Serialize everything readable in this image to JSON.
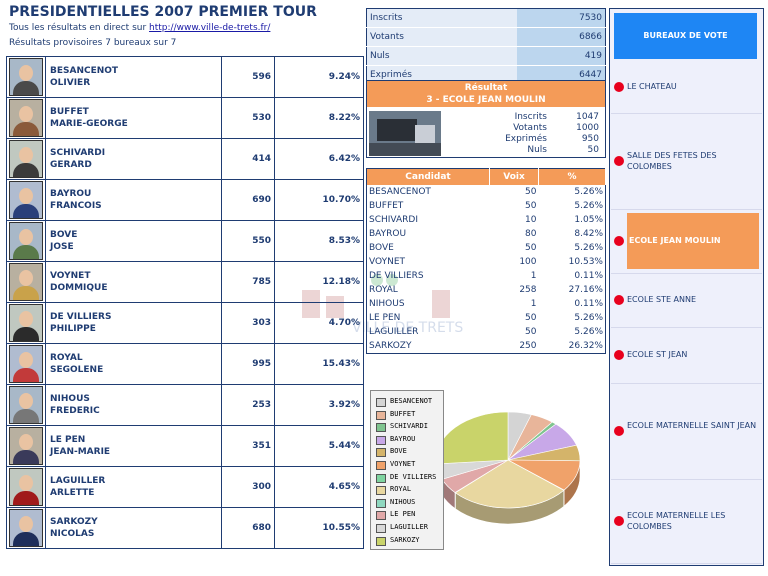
{
  "header": {
    "title": "PRESIDENTIELLES 2007 PREMIER TOUR",
    "subtitle_prefix": "Tous les résultats en direct sur",
    "subtitle_link": "http://www.ville-de-trets.fr/",
    "progress": "Résultats provisoires 7 bureaux sur 7"
  },
  "candidates": [
    {
      "first": "BESANCENOT",
      "last": "OLIVIER",
      "votes": "596",
      "pct": "9.24%",
      "shirt": "#4a4a4a"
    },
    {
      "first": "BUFFET",
      "last": "MARIE-GEORGE",
      "votes": "530",
      "pct": "8.22%",
      "shirt": "#8a5a3a"
    },
    {
      "first": "SCHIVARDI",
      "last": "GERARD",
      "votes": "414",
      "pct": "6.42%",
      "shirt": "#3b3b3b"
    },
    {
      "first": "BAYROU",
      "last": "FRANCOIS",
      "votes": "690",
      "pct": "10.70%",
      "shirt": "#2a3f7a"
    },
    {
      "first": "BOVE",
      "last": "JOSE",
      "votes": "550",
      "pct": "8.53%",
      "shirt": "#5a7a4a"
    },
    {
      "first": "VOYNET",
      "last": "DOMMIQUE",
      "votes": "785",
      "pct": "12.18%",
      "shirt": "#c9a24a"
    },
    {
      "first": "DE VILLIERS",
      "last": "PHILIPPE",
      "votes": "303",
      "pct": "4.70%",
      "shirt": "#2b2b2b"
    },
    {
      "first": "ROYAL",
      "last": "SEGOLENE",
      "votes": "995",
      "pct": "15.43%",
      "shirt": "#c23a3a"
    },
    {
      "first": "NIHOUS",
      "last": "FREDERIC",
      "votes": "253",
      "pct": "3.92%",
      "shirt": "#777777"
    },
    {
      "first": "LE PEN",
      "last": "JEAN-MARIE",
      "votes": "351",
      "pct": "5.44%",
      "shirt": "#3a3a5a"
    },
    {
      "first": "LAGUILLER",
      "last": "ARLETTE",
      "votes": "300",
      "pct": "4.65%",
      "shirt": "#a01a1a"
    },
    {
      "first": "SARKOZY",
      "last": "NICOLAS",
      "votes": "680",
      "pct": "10.55%",
      "shirt": "#1e2e5a"
    }
  ],
  "stats": [
    {
      "label": "Inscrits",
      "value": "7530"
    },
    {
      "label": "Votants",
      "value": "6866"
    },
    {
      "label": "Nuls",
      "value": "419"
    },
    {
      "label": "Exprimés",
      "value": "6447"
    }
  ],
  "result": {
    "title": "Résultat",
    "bureau": "3 - ECOLE JEAN MOULIN",
    "rows": [
      {
        "label": "Inscrits",
        "value": "1047"
      },
      {
        "label": "Votants",
        "value": "1000"
      },
      {
        "label": "Exprimés",
        "value": "950"
      },
      {
        "label": "Nuls",
        "value": "50"
      }
    ]
  },
  "detail": {
    "headers": [
      "Candidat",
      "Voix",
      "%"
    ],
    "rows": [
      {
        "name": "BESANCENOT",
        "voix": "50",
        "pct": "5.26%"
      },
      {
        "name": "BUFFET",
        "voix": "50",
        "pct": "5.26%"
      },
      {
        "name": "SCHIVARDI",
        "voix": "10",
        "pct": "1.05%"
      },
      {
        "name": "BAYROU",
        "voix": "80",
        "pct": "8.42%"
      },
      {
        "name": "BOVE",
        "voix": "50",
        "pct": "5.26%"
      },
      {
        "name": "VOYNET",
        "voix": "100",
        "pct": "10.53%"
      },
      {
        "name": "DE VILLIERS",
        "voix": "1",
        "pct": "0.11%"
      },
      {
        "name": "ROYAL",
        "voix": "258",
        "pct": "27.16%"
      },
      {
        "name": "NIHOUS",
        "voix": "1",
        "pct": "0.11%"
      },
      {
        "name": "LE PEN",
        "voix": "50",
        "pct": "5.26%"
      },
      {
        "name": "LAGUILLER",
        "voix": "50",
        "pct": "5.26%"
      },
      {
        "name": "SARKOZY",
        "voix": "250",
        "pct": "26.32%"
      }
    ]
  },
  "chart_data": {
    "type": "pie",
    "title": "",
    "categories": [
      "BESANCENOT",
      "BUFFET",
      "SCHIVARDI",
      "BAYROU",
      "BOVE",
      "VOYNET",
      "DE VILLIERS",
      "ROYAL",
      "NIHOUS",
      "LE PEN",
      "LAGUILLER",
      "SARKOZY"
    ],
    "values": [
      50,
      50,
      10,
      80,
      50,
      100,
      1,
      258,
      1,
      50,
      50,
      250
    ],
    "colors": [
      "#d4d4d4",
      "#e8b59a",
      "#7fc48f",
      "#c8a8e8",
      "#d4b46a",
      "#f0a26a",
      "#7fd4a0",
      "#e8d7a0",
      "#8fd8c0",
      "#e0a8a8",
      "#d8d8d8",
      "#c9d36a"
    ],
    "legend": "left"
  },
  "bureaux": {
    "title": "BUREAUX DE VOTE",
    "items": [
      "LE CHATEAU",
      "SALLE DES FETES DES COLOMBES",
      "ECOLE JEAN MOULIN",
      "ECOLE STE ANNE",
      "ECOLE ST JEAN",
      "ECOLE MATERNELLE SAINT JEAN",
      "ECOLE MATERNELLE LES COLOMBES"
    ],
    "active_index": 2
  },
  "watermark_text": "VILLE DE TRETS"
}
